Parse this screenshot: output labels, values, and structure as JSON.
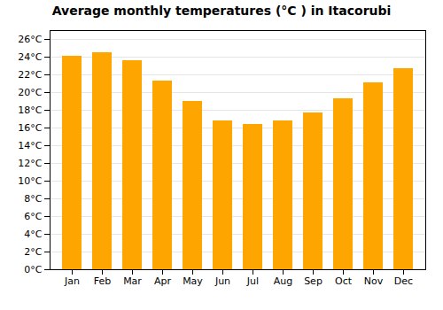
{
  "chart_data": {
    "type": "bar",
    "title": "Average monthly temperatures (°C ) in Itacorubi",
    "categories": [
      "Jan",
      "Feb",
      "Mar",
      "Apr",
      "May",
      "Jun",
      "Jul",
      "Aug",
      "Sep",
      "Oct",
      "Nov",
      "Dec"
    ],
    "values": [
      24.1,
      24.5,
      23.6,
      21.3,
      19.0,
      16.8,
      16.4,
      16.8,
      17.7,
      19.3,
      21.1,
      22.7
    ],
    "color": "#FFA500",
    "ylim": [
      0,
      27
    ],
    "yticks": [
      {
        "value": 0,
        "label": "0°C"
      },
      {
        "value": 2,
        "label": "2°C"
      },
      {
        "value": 4,
        "label": "4°C"
      },
      {
        "value": 6,
        "label": "6°C"
      },
      {
        "value": 8,
        "label": "8°C"
      },
      {
        "value": 10,
        "label": "10°C"
      },
      {
        "value": 12,
        "label": "12°C"
      },
      {
        "value": 14,
        "label": "14°C"
      },
      {
        "value": 16,
        "label": "16°C"
      },
      {
        "value": 18,
        "label": "18°C"
      },
      {
        "value": 20,
        "label": "20°C"
      },
      {
        "value": 22,
        "label": "22°C"
      },
      {
        "value": 24,
        "label": "24°C"
      },
      {
        "value": 26,
        "label": "26°C"
      }
    ],
    "grid": true
  }
}
